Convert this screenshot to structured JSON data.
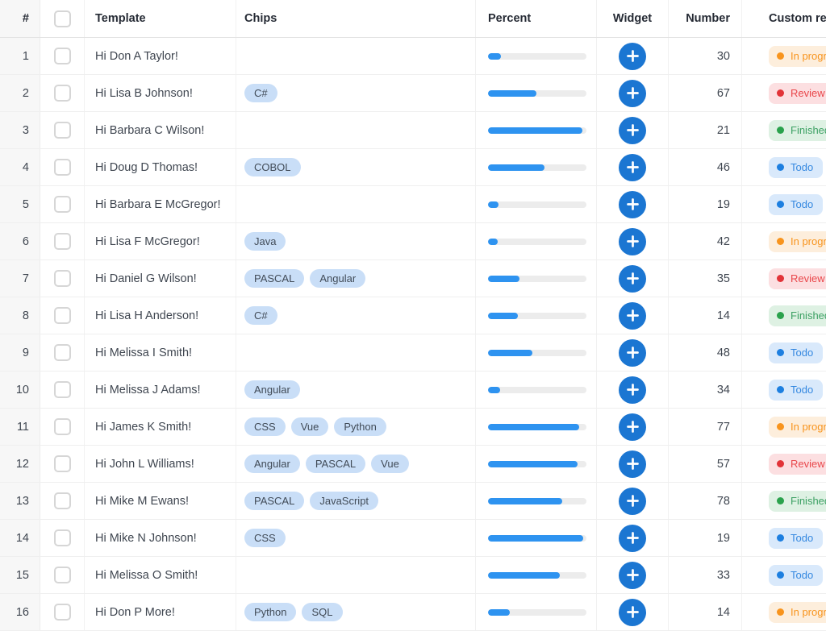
{
  "table": {
    "columns": [
      {
        "label": "#"
      },
      {
        "label": ""
      },
      {
        "label": "Template"
      },
      {
        "label": "Chips"
      },
      {
        "label": "Percent"
      },
      {
        "label": "Widget"
      },
      {
        "label": "Number"
      },
      {
        "label": "Custom rendering"
      }
    ],
    "widget_icon": "plus-icon",
    "rows": [
      {
        "index": 1,
        "template": "Hi Don A Taylor!",
        "chips": [],
        "percent": 13,
        "number": 30,
        "status": {
          "label": "In progress",
          "type": "in_progress"
        }
      },
      {
        "index": 2,
        "template": "Hi Lisa B Johnson!",
        "chips": [
          "C#"
        ],
        "percent": 49,
        "number": 67,
        "status": {
          "label": "Review",
          "type": "review"
        }
      },
      {
        "index": 3,
        "template": "Hi Barbara C Wilson!",
        "chips": [],
        "percent": 96,
        "number": 21,
        "status": {
          "label": "Finished",
          "type": "finished"
        }
      },
      {
        "index": 4,
        "template": "Hi Doug D Thomas!",
        "chips": [
          "COBOL"
        ],
        "percent": 57,
        "number": 46,
        "status": {
          "label": "Todo",
          "type": "todo"
        }
      },
      {
        "index": 5,
        "template": "Hi Barbara E McGregor!",
        "chips": [],
        "percent": 11,
        "number": 19,
        "status": {
          "label": "Todo",
          "type": "todo"
        }
      },
      {
        "index": 6,
        "template": "Hi Lisa F McGregor!",
        "chips": [
          "Java"
        ],
        "percent": 10,
        "number": 42,
        "status": {
          "label": "In progress",
          "type": "in_progress"
        }
      },
      {
        "index": 7,
        "template": "Hi Daniel G Wilson!",
        "chips": [
          "PASCAL",
          "Angular"
        ],
        "percent": 32,
        "number": 35,
        "status": {
          "label": "Review",
          "type": "review"
        }
      },
      {
        "index": 8,
        "template": "Hi Lisa H Anderson!",
        "chips": [
          "C#"
        ],
        "percent": 30,
        "number": 14,
        "status": {
          "label": "Finished",
          "type": "finished"
        }
      },
      {
        "index": 9,
        "template": "Hi Melissa I Smith!",
        "chips": [],
        "percent": 45,
        "number": 48,
        "status": {
          "label": "Todo",
          "type": "todo"
        }
      },
      {
        "index": 10,
        "template": "Hi Melissa J Adams!",
        "chips": [
          "Angular"
        ],
        "percent": 12,
        "number": 34,
        "status": {
          "label": "Todo",
          "type": "todo"
        }
      },
      {
        "index": 11,
        "template": "Hi James K Smith!",
        "chips": [
          "CSS",
          "Vue",
          "Python"
        ],
        "percent": 93,
        "number": 77,
        "status": {
          "label": "In progress",
          "type": "in_progress"
        }
      },
      {
        "index": 12,
        "template": "Hi John L Williams!",
        "chips": [
          "Angular",
          "PASCAL",
          "Vue"
        ],
        "percent": 91,
        "number": 57,
        "status": {
          "label": "Review",
          "type": "review"
        }
      },
      {
        "index": 13,
        "template": "Hi Mike M Ewans!",
        "chips": [
          "PASCAL",
          "JavaScript"
        ],
        "percent": 75,
        "number": 78,
        "status": {
          "label": "Finished",
          "type": "finished"
        }
      },
      {
        "index": 14,
        "template": "Hi Mike N Johnson!",
        "chips": [
          "CSS"
        ],
        "percent": 97,
        "number": 19,
        "status": {
          "label": "Todo",
          "type": "todo"
        }
      },
      {
        "index": 15,
        "template": "Hi Melissa O Smith!",
        "chips": [],
        "percent": 73,
        "number": 33,
        "status": {
          "label": "Todo",
          "type": "todo"
        }
      },
      {
        "index": 16,
        "template": "Hi Don P More!",
        "chips": [
          "Python",
          "SQL"
        ],
        "percent": 22,
        "number": 14,
        "status": {
          "label": "In progress",
          "type": "in_progress"
        }
      }
    ]
  },
  "colors": {
    "widget_button": "#1b76d2",
    "bar_fill": "#2e93f0",
    "bar_track": "#ececec",
    "chip_bg": "#c9def7",
    "status": {
      "in_progress": {
        "bg": "#fdeedc",
        "text": "#f8941d",
        "dot": "#f8941d"
      },
      "review": {
        "bg": "#fcdfe1",
        "text": "#e9474b",
        "dot": "#e23338"
      },
      "finished": {
        "bg": "#def1e3",
        "text": "#3da164",
        "dot": "#2aa24c"
      },
      "todo": {
        "bg": "#d9e9fb",
        "text": "#3488e0",
        "dot": "#1d7fe0"
      }
    }
  }
}
